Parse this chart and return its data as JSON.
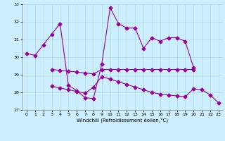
{
  "background_color": "#cceeff",
  "grid_color": "#aadddd",
  "line_color": "#990099",
  "xlabel": "Windchill (Refroidissement éolien,°C)",
  "xlim": [
    -0.5,
    23.5
  ],
  "ylim": [
    27,
    33
  ],
  "yticks": [
    27,
    28,
    29,
    30,
    31,
    32,
    33
  ],
  "xticks": [
    0,
    1,
    2,
    3,
    4,
    5,
    6,
    7,
    8,
    9,
    10,
    11,
    12,
    13,
    14,
    15,
    16,
    17,
    18,
    19,
    20,
    21,
    22,
    23
  ],
  "line1_x": [
    0,
    1,
    2,
    3,
    4,
    5,
    6,
    7,
    8,
    9,
    10,
    11,
    12,
    13,
    14,
    15,
    16,
    17,
    18,
    19,
    20
  ],
  "line1_y": [
    30.2,
    30.1,
    30.7,
    31.3,
    31.9,
    28.4,
    28.1,
    27.7,
    27.65,
    29.6,
    32.8,
    31.9,
    31.65,
    31.65,
    30.5,
    31.1,
    30.9,
    31.1,
    31.1,
    30.9,
    29.4
  ],
  "line2_x": [
    3,
    4,
    5,
    6,
    7,
    8,
    9,
    10,
    11,
    12,
    13,
    14,
    15,
    16,
    17,
    18,
    19,
    20
  ],
  "line2_y": [
    29.3,
    29.25,
    29.2,
    29.15,
    29.1,
    29.05,
    29.3,
    29.3,
    29.3,
    29.3,
    29.3,
    29.3,
    29.3,
    29.3,
    29.3,
    29.3,
    29.3,
    29.3
  ],
  "line3_x": [
    3,
    4,
    5,
    6,
    7,
    8,
    9,
    10,
    11,
    12,
    13,
    14,
    15,
    16,
    17,
    18,
    19,
    20,
    21,
    22,
    23
  ],
  "line3_y": [
    28.35,
    28.25,
    28.15,
    28.05,
    27.95,
    28.3,
    28.9,
    28.75,
    28.6,
    28.45,
    28.3,
    28.15,
    28.0,
    27.9,
    27.85,
    27.8,
    27.75,
    28.2,
    28.15,
    27.85,
    27.4
  ]
}
